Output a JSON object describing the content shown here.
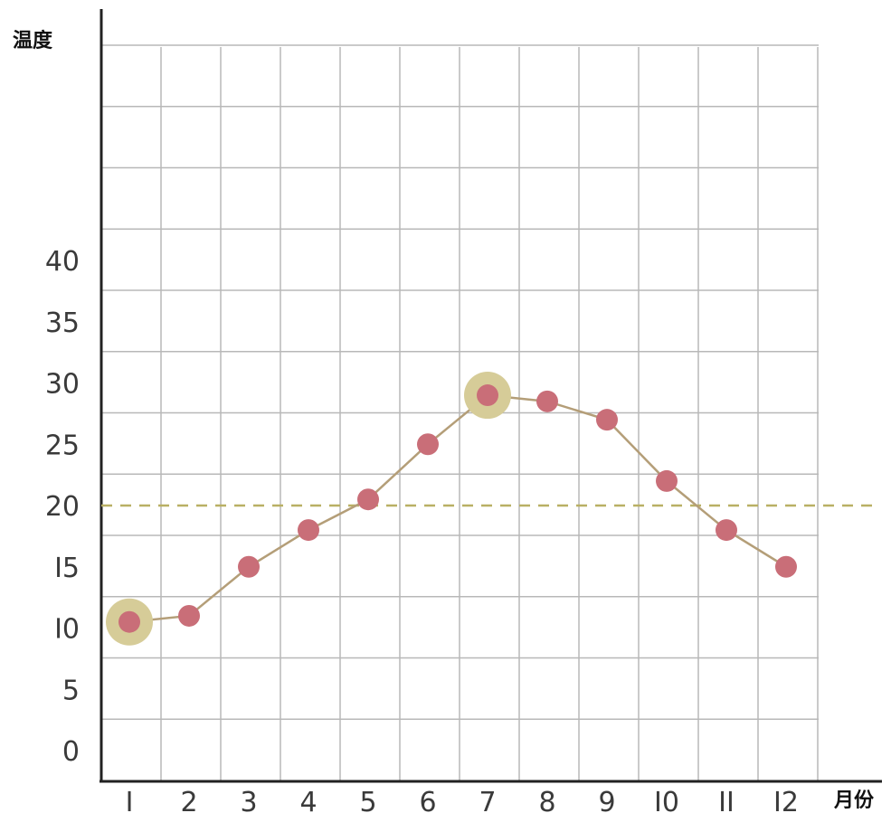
{
  "chart_data": {
    "type": "line",
    "title": "",
    "xlabel": "月份",
    "ylabel": "温度",
    "categories": [
      "1",
      "2",
      "3",
      "4",
      "5",
      "6",
      "7",
      "8",
      "9",
      "10",
      "11",
      "12"
    ],
    "x_tick_labels": [
      "I",
      "2",
      "3",
      "4",
      "5",
      "6",
      "7",
      "8",
      "9",
      "I0",
      "II",
      "I2"
    ],
    "y_tick_labels": [
      "0",
      "5",
      "I0",
      "I5",
      "20",
      "25",
      "30",
      "35",
      "40"
    ],
    "y_ticks": [
      0,
      5,
      10,
      15,
      20,
      25,
      30,
      35,
      40
    ],
    "ylim": [
      0,
      60
    ],
    "series": [
      {
        "values": [
          10.5,
          11,
          15,
          18,
          20.5,
          25,
          29,
          28.5,
          27,
          22,
          18,
          15
        ],
        "color": "#c96e78",
        "line_color": "#b49e78"
      }
    ],
    "highlighted_points": [
      1,
      7
    ],
    "highlight_color": "#d6cc98",
    "reference_line": {
      "y": 20,
      "style": "dashed",
      "color": "#b9b064"
    },
    "grid": true,
    "grid_color": "#b8b8b8"
  }
}
